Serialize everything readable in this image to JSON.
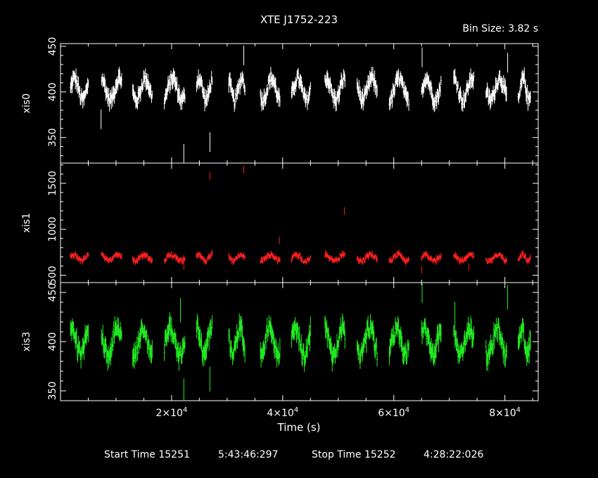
{
  "title": "XTE J1752-223",
  "bin_size": "Bin Size: 3.82 s",
  "footer": {
    "start_label": "Start Time 15251",
    "start_value": "5:43:46:297",
    "stop_label": "Stop Time 15252",
    "stop_value": "4:28:22:026"
  },
  "colors": {
    "xis0": "#ffffff",
    "xis1": "#ff2020",
    "xis3": "#22ee22",
    "axis": "#ffffff"
  },
  "chart_data": {
    "type": "scatter",
    "xlabel": "Time (s)",
    "xlim": [
      0,
      86000
    ],
    "x_ticks": [
      {
        "v": 20000,
        "mant": "2×10",
        "exp": "4"
      },
      {
        "v": 40000,
        "mant": "4×10",
        "exp": "4"
      },
      {
        "v": 60000,
        "mant": "6×10",
        "exp": "4"
      },
      {
        "v": 80000,
        "mant": "8×10",
        "exp": "4"
      }
    ],
    "segments": [
      {
        "start": 1800,
        "end": 5000
      },
      {
        "start": 7400,
        "end": 11000
      },
      {
        "start": 13000,
        "end": 16500
      },
      {
        "start": 18700,
        "end": 22400
      },
      {
        "start": 24500,
        "end": 27300
      },
      {
        "start": 30300,
        "end": 33200
      },
      {
        "start": 36000,
        "end": 39500
      },
      {
        "start": 41600,
        "end": 45000
      },
      {
        "start": 47600,
        "end": 51200
      },
      {
        "start": 53400,
        "end": 57000
      },
      {
        "start": 59200,
        "end": 62700
      },
      {
        "start": 65000,
        "end": 68500
      },
      {
        "start": 70800,
        "end": 74400
      },
      {
        "start": 76600,
        "end": 80300
      },
      {
        "start": 82400,
        "end": 84600
      }
    ],
    "panels": [
      {
        "name": "xis0",
        "ylim": [
          322,
          453
        ],
        "y_ticks": [
          350,
          400,
          450
        ],
        "base": 403,
        "amp": 12,
        "noise": 6,
        "spikes": [
          {
            "x": 7300,
            "y": 370
          },
          {
            "x": 22200,
            "y": 332
          },
          {
            "x": 26900,
            "y": 345
          },
          {
            "x": 33000,
            "y": 440
          },
          {
            "x": 65100,
            "y": 438
          },
          {
            "x": 80500,
            "y": 432
          }
        ]
      },
      {
        "name": "xis1",
        "ylim": [
          420,
          1720
        ],
        "y_ticks": [
          500,
          1000,
          1500
        ],
        "base": 690,
        "amp": 35,
        "noise": 22,
        "spikes": [
          {
            "x": 26900,
            "y": 1580
          },
          {
            "x": 33000,
            "y": 1650
          },
          {
            "x": 51100,
            "y": 1200
          },
          {
            "x": 39400,
            "y": 880
          },
          {
            "x": 22200,
            "y": 600
          },
          {
            "x": 65000,
            "y": 560
          },
          {
            "x": 73500,
            "y": 590
          }
        ]
      },
      {
        "name": "xis3",
        "ylim": [
          340,
          460
        ],
        "y_ticks": [
          350,
          400,
          450
        ],
        "base": 400,
        "amp": 14,
        "noise": 7,
        "spikes": [
          {
            "x": 21600,
            "y": 432
          },
          {
            "x": 22200,
            "y": 350
          },
          {
            "x": 26900,
            "y": 362
          },
          {
            "x": 65100,
            "y": 452
          },
          {
            "x": 71000,
            "y": 428
          },
          {
            "x": 80500,
            "y": 445
          }
        ]
      }
    ]
  }
}
